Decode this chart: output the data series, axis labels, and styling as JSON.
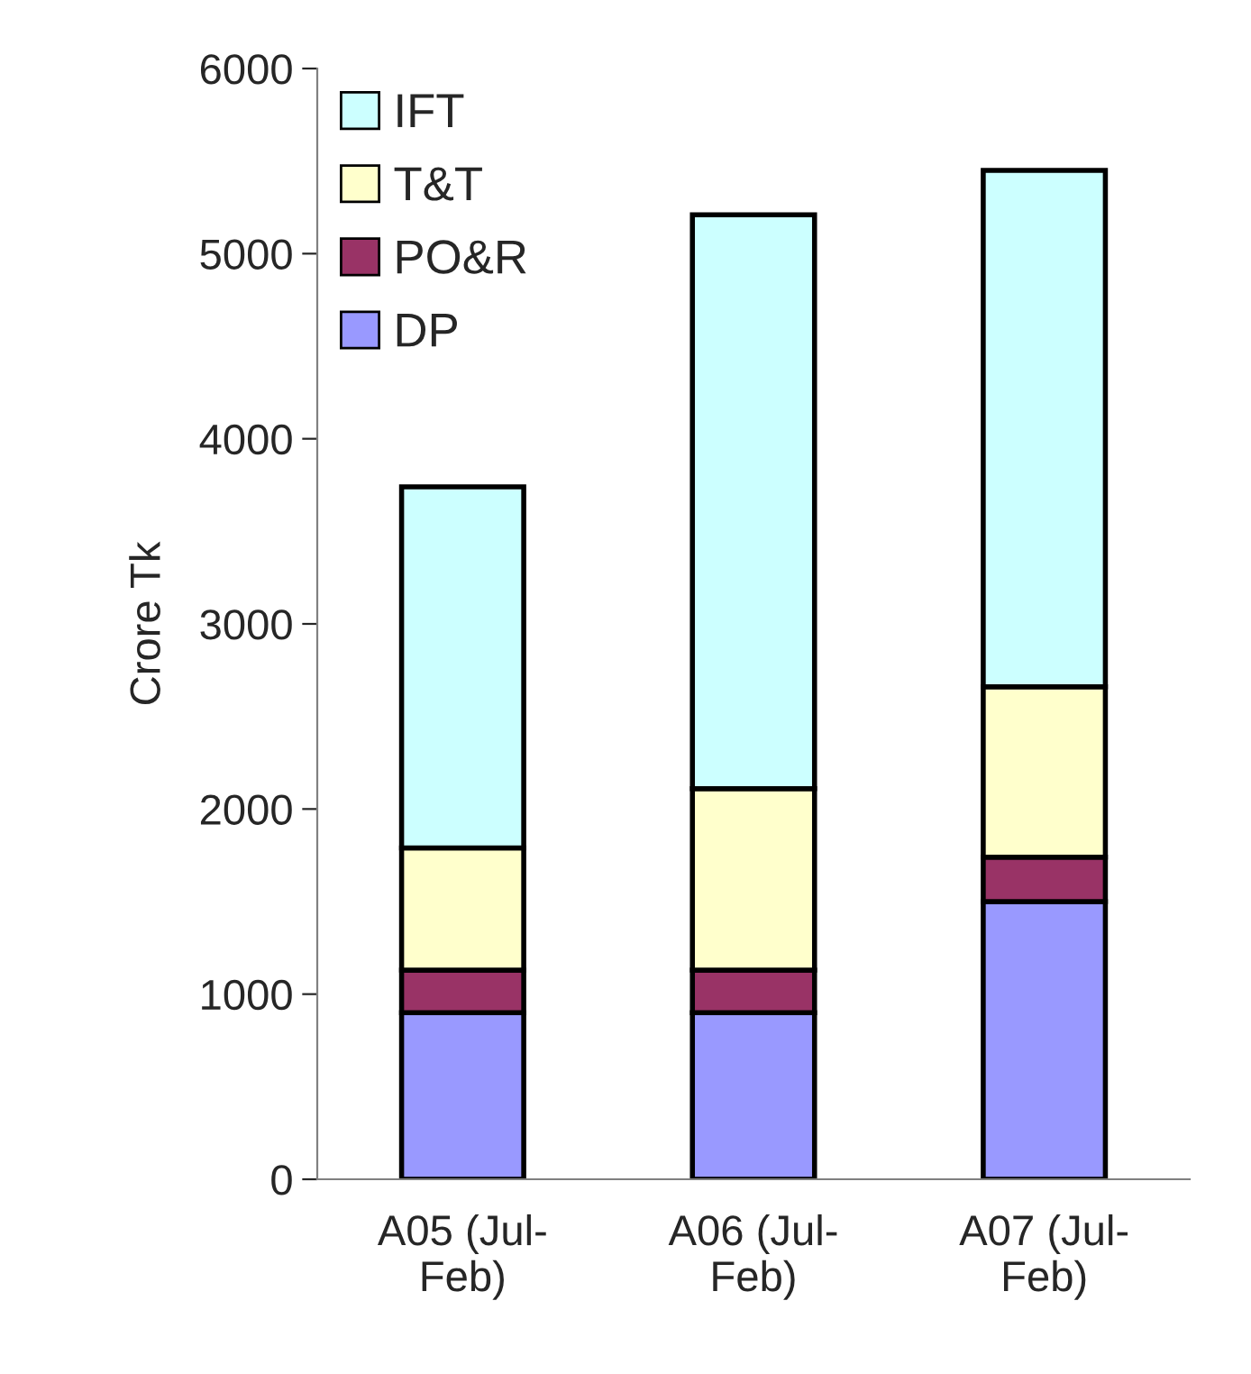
{
  "chart_data": {
    "type": "bar",
    "stacked": true,
    "ylabel": "Crore Tk",
    "categories": [
      "A05 (Jul-Feb)",
      "A06 (Jul-Feb)",
      "A07 (Jul-Feb)"
    ],
    "series": [
      {
        "name": "DP",
        "color": "#9999ff",
        "values": [
          900,
          900,
          1500
        ]
      },
      {
        "name": "PO&R",
        "color": "#993366",
        "values": [
          230,
          230,
          240
        ]
      },
      {
        "name": "T&T",
        "color": "#ffffcc",
        "values": [
          660,
          980,
          920
        ]
      },
      {
        "name": "IFT",
        "color": "#ccffff",
        "values": [
          1950,
          3100,
          2790
        ]
      }
    ],
    "ylim": [
      0,
      6000
    ],
    "yticks": [
      0,
      1000,
      2000,
      3000,
      4000,
      5000,
      6000
    ],
    "grid": false,
    "legend": "top left"
  }
}
